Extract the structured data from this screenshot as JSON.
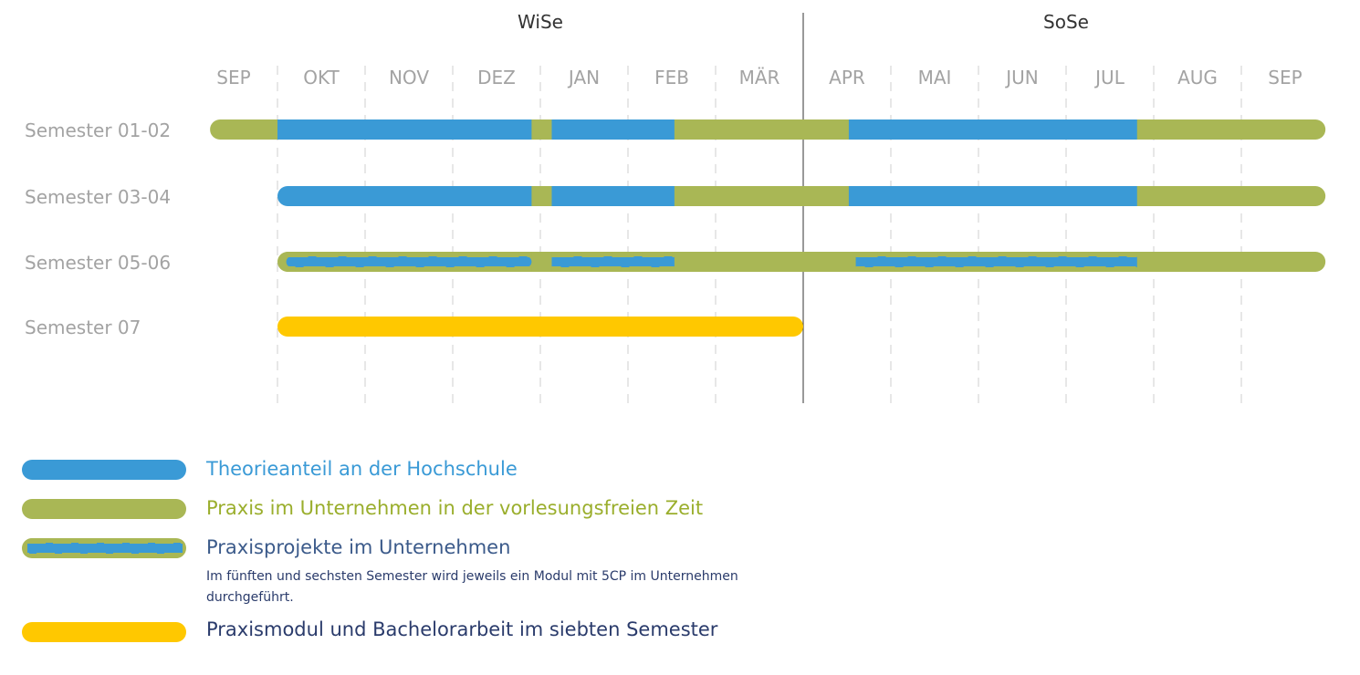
{
  "colors": {
    "theory": "#3a9ad6",
    "practice": "#a9b755",
    "final": "#ffc800",
    "label": "#a3a3a3",
    "grid": "#cfcfcf",
    "divider": "#333333"
  },
  "chart_data": {
    "type": "gantt",
    "periods": [
      {
        "label": "WiSe",
        "from": 1,
        "to": 7
      },
      {
        "label": "SoSe",
        "from": 7,
        "to": 13
      }
    ],
    "months": [
      "SEP",
      "OKT",
      "NOV",
      "DEZ",
      "JAN",
      "FEB",
      "MÄR",
      "APR",
      "MAI",
      "JUN",
      "JUL",
      "AUG",
      "SEP"
    ],
    "rows": [
      {
        "label": "Semester 01-02",
        "segments": [
          {
            "type": "practice",
            "start": 0.23,
            "end": 1.0
          },
          {
            "type": "theory",
            "start": 1.0,
            "end": 3.9
          },
          {
            "type": "practice",
            "start": 3.9,
            "end": 4.13
          },
          {
            "type": "theory",
            "start": 4.13,
            "end": 5.53
          },
          {
            "type": "practice",
            "start": 5.53,
            "end": 7.52
          },
          {
            "type": "theory",
            "start": 7.52,
            "end": 10.81
          },
          {
            "type": "practice",
            "start": 10.81,
            "end": 12.96
          }
        ]
      },
      {
        "label": "Semester 03-04",
        "segments": [
          {
            "type": "theory",
            "start": 1.0,
            "end": 3.9
          },
          {
            "type": "practice",
            "start": 3.9,
            "end": 4.13
          },
          {
            "type": "theory",
            "start": 4.13,
            "end": 5.53
          },
          {
            "type": "practice",
            "start": 5.53,
            "end": 7.52
          },
          {
            "type": "theory",
            "start": 7.52,
            "end": 10.81
          },
          {
            "type": "practice",
            "start": 10.81,
            "end": 12.96
          }
        ]
      },
      {
        "label": "Semester 05-06",
        "segments": [
          {
            "type": "practice",
            "start": 1.0,
            "end": 12.96
          },
          {
            "type": "project",
            "start": 1.1,
            "end": 3.9
          },
          {
            "type": "project",
            "start": 4.13,
            "end": 5.53
          },
          {
            "type": "project",
            "start": 7.6,
            "end": 10.81
          }
        ]
      },
      {
        "label": "Semester 07",
        "segments": [
          {
            "type": "final",
            "start": 1.0,
            "end": 7.0
          }
        ]
      }
    ]
  },
  "legend": [
    {
      "type": "theory",
      "label": "Theorieanteil an der Hochschule",
      "color": "#3a9ad6"
    },
    {
      "type": "practice",
      "label": "Praxis im Unternehmen in der vorlesungsfreien Zeit",
      "color": "#9aae2c"
    },
    {
      "type": "project",
      "label": "Praxisprojekte im Unternehmen",
      "color": "#3b5a8a",
      "note": "Im fünften und sechsten Semester wird jeweils ein Modul mit 5CP im Unternehmen durchgeführt."
    },
    {
      "type": "final",
      "label": "Praxismodul und Bachelorarbeit im siebten Semester",
      "color": "#2a3b6b"
    }
  ]
}
